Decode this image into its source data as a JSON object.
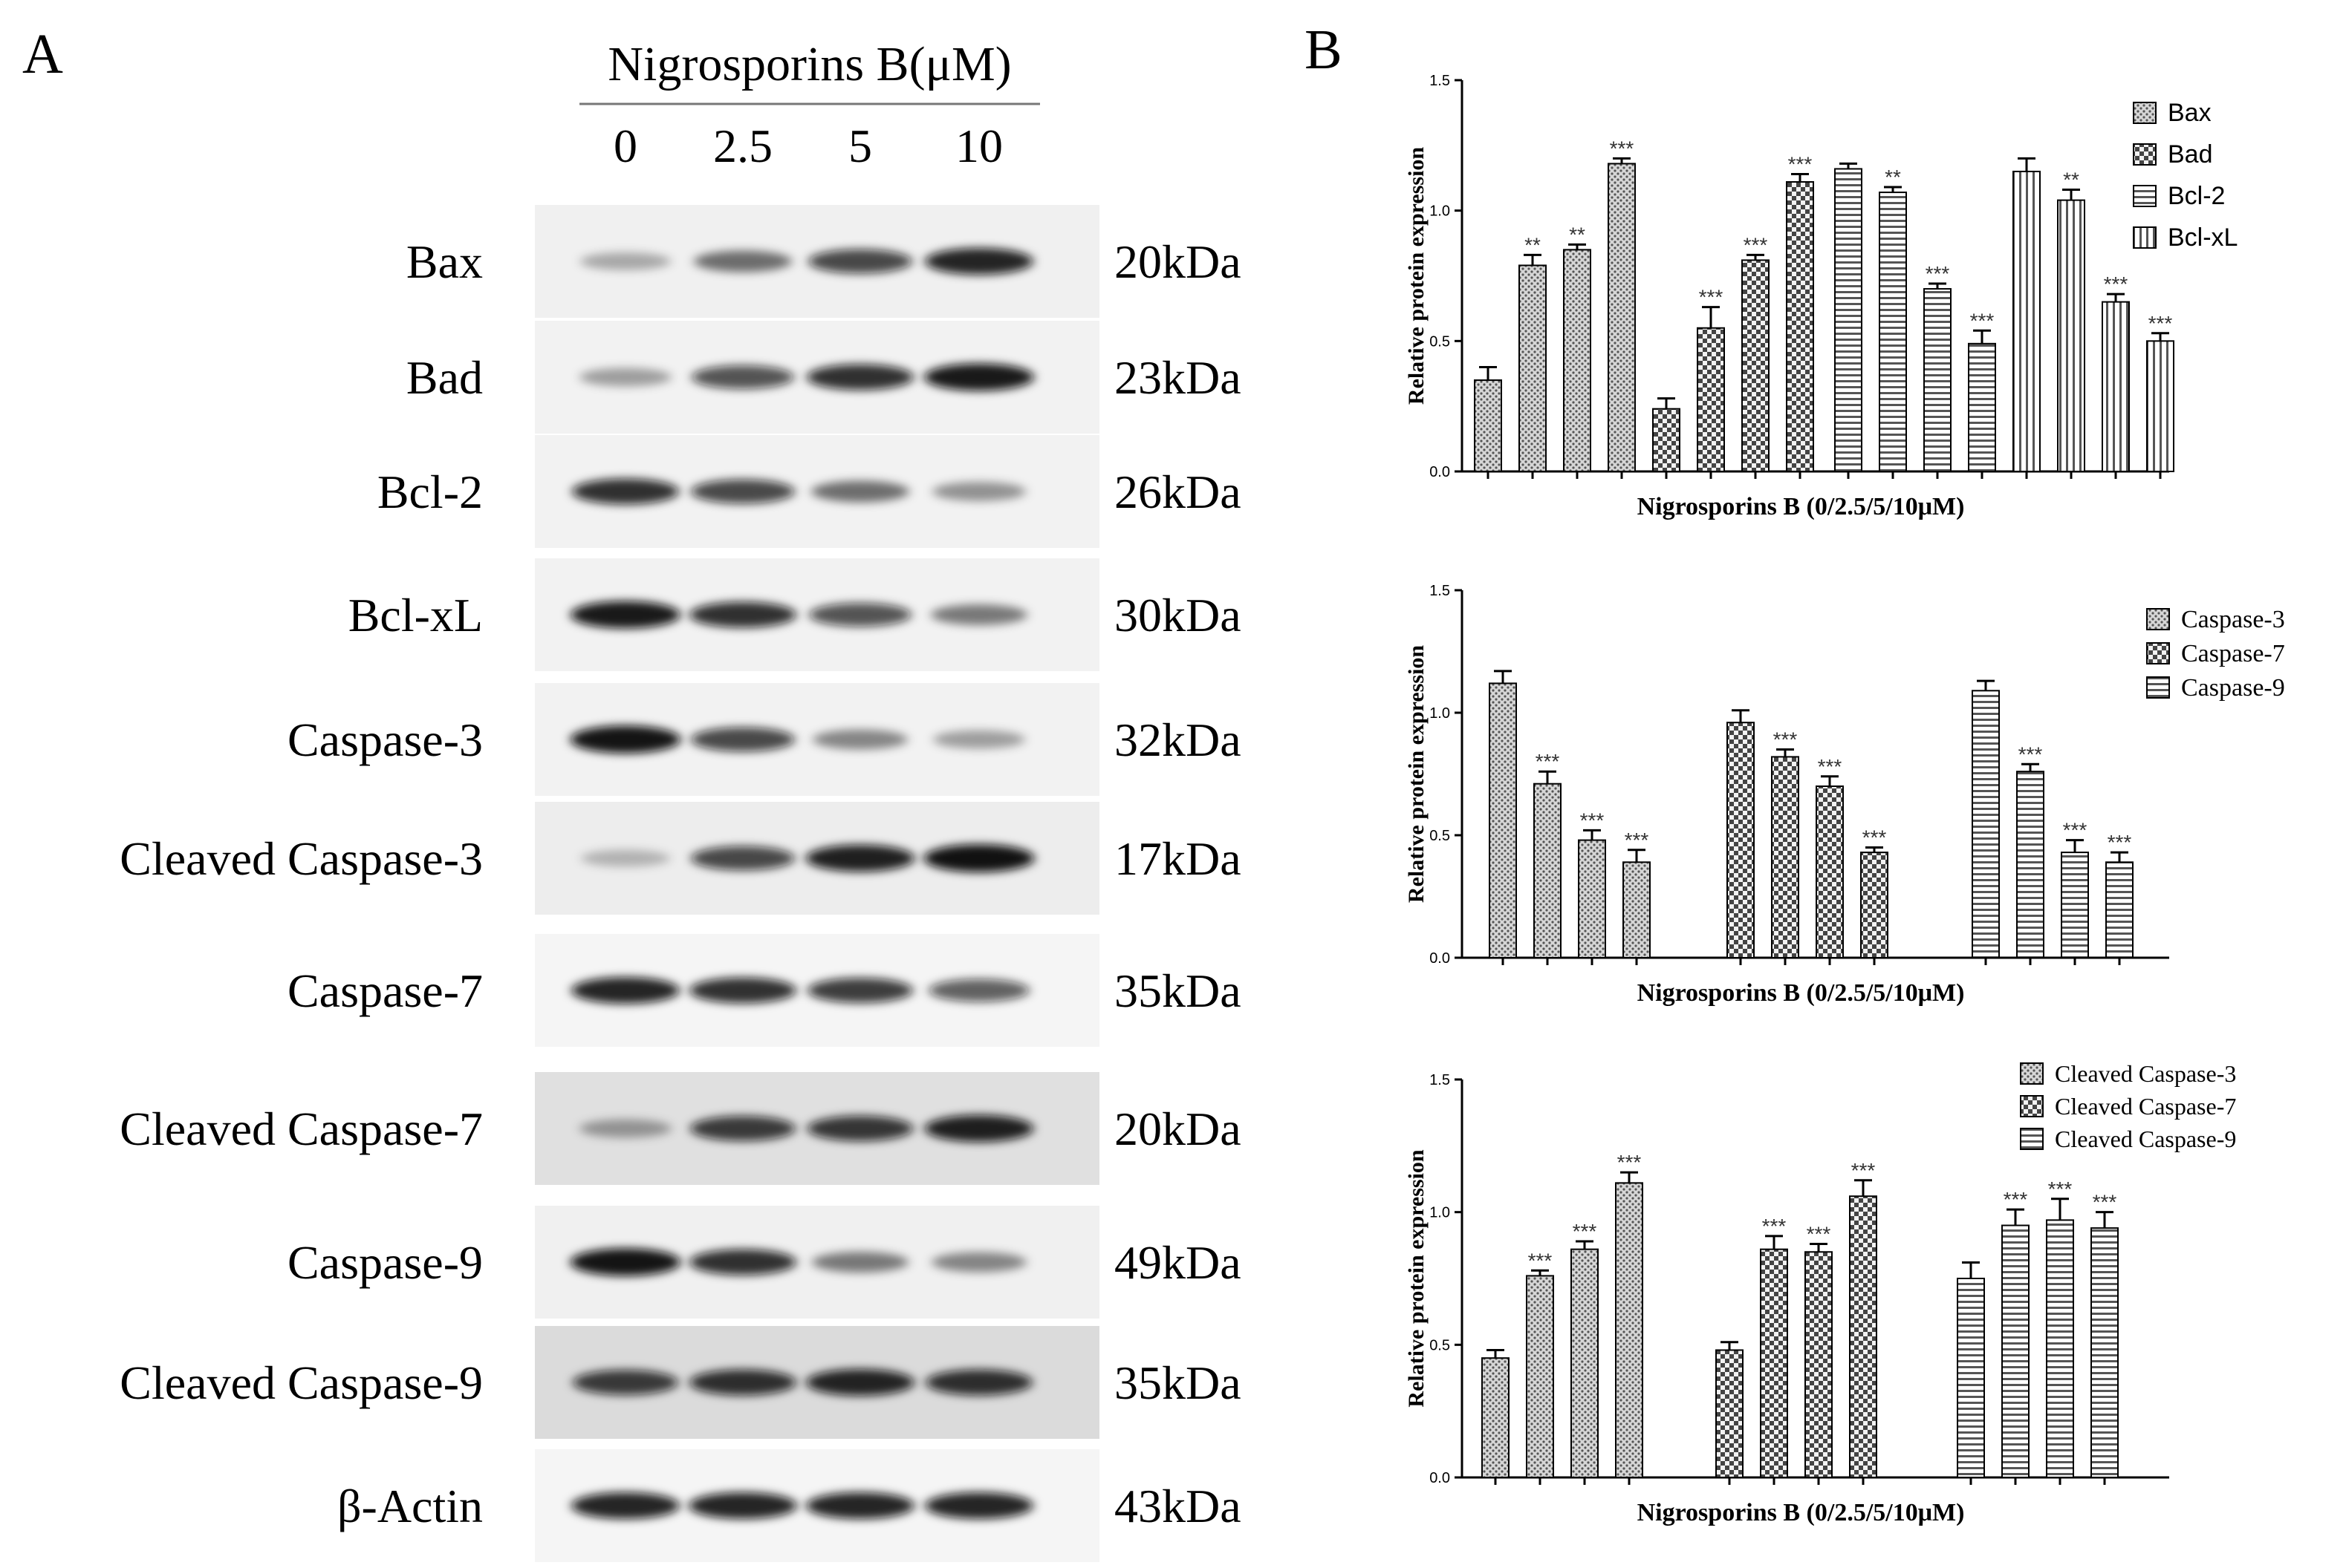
{
  "panel_a": {
    "letter": "A",
    "treatment_label": "Nigrosporins B(μM)",
    "doses": [
      "0",
      "2.5",
      "5",
      "10"
    ],
    "blots": [
      {
        "protein": "Bax",
        "size": "20kDa",
        "intensity": [
          0.3,
          0.55,
          0.75,
          0.9
        ],
        "bg": 0.06
      },
      {
        "protein": "Bad",
        "size": "23kDa",
        "intensity": [
          0.35,
          0.7,
          0.85,
          0.95
        ],
        "bg": 0.05
      },
      {
        "protein": "Bcl-2",
        "size": "26kDa",
        "intensity": [
          0.85,
          0.75,
          0.55,
          0.4
        ],
        "bg": 0.05
      },
      {
        "protein": "Bcl-xL",
        "size": "30kDa",
        "intensity": [
          0.95,
          0.85,
          0.7,
          0.5
        ],
        "bg": 0.05
      },
      {
        "protein": "Caspase-3",
        "size": "32kDa",
        "intensity": [
          0.97,
          0.75,
          0.45,
          0.35
        ],
        "bg": 0.05
      },
      {
        "protein": "Cleaved Caspase-3",
        "size": "17kDa",
        "intensity": [
          0.25,
          0.75,
          0.92,
          0.98
        ],
        "bg": 0.07
      },
      {
        "protein": "Caspase-7",
        "size": "35kDa",
        "intensity": [
          0.9,
          0.85,
          0.8,
          0.65
        ],
        "bg": 0.04
      },
      {
        "protein": "Cleaved Caspase-7",
        "size": "20kDa",
        "intensity": [
          0.35,
          0.8,
          0.82,
          0.92
        ],
        "bg": 0.12
      },
      {
        "protein": "Caspase-9",
        "size": "49kDa",
        "intensity": [
          0.97,
          0.85,
          0.5,
          0.45
        ],
        "bg": 0.06
      },
      {
        "protein": "Cleaved Caspase-9",
        "size": "35kDa",
        "intensity": [
          0.8,
          0.85,
          0.9,
          0.85
        ],
        "bg": 0.14
      },
      {
        "protein": "β-Actin",
        "size": "43kDa",
        "intensity": [
          0.9,
          0.9,
          0.9,
          0.9
        ],
        "bg": 0.04
      }
    ]
  },
  "panel_b": {
    "letter": "B"
  },
  "chart_data": [
    {
      "type": "bar",
      "title": "",
      "ylabel": "Relative protein expression",
      "xlabel": "Nigrosporins B (0/2.5/5/10μM)",
      "ylim": [
        0,
        1.5
      ],
      "yticks": [
        "0.0",
        "0.5",
        "1.0",
        "1.5"
      ],
      "legend_position": "top-right",
      "series": [
        {
          "name": "Bax",
          "pattern": "dots",
          "values": [
            0.35,
            0.79,
            0.85,
            1.18
          ],
          "errors": [
            0.05,
            0.04,
            0.02,
            0.02
          ],
          "significance": [
            "",
            "**",
            "**",
            "***"
          ]
        },
        {
          "name": "Bad",
          "pattern": "checker",
          "values": [
            0.24,
            0.55,
            0.81,
            1.11
          ],
          "errors": [
            0.04,
            0.08,
            0.02,
            0.03
          ],
          "significance": [
            "",
            "***",
            "***",
            "***"
          ]
        },
        {
          "name": "Bcl-2",
          "pattern": "hlines",
          "values": [
            1.16,
            1.07,
            0.7,
            0.49
          ],
          "errors": [
            0.02,
            0.02,
            0.02,
            0.05
          ],
          "significance": [
            "",
            "**",
            "***",
            "***"
          ]
        },
        {
          "name": "Bcl-xL",
          "pattern": "vlines",
          "values": [
            1.15,
            1.04,
            0.65,
            0.5
          ],
          "errors": [
            0.05,
            0.04,
            0.03,
            0.03
          ],
          "significance": [
            "",
            "**",
            "***",
            "***"
          ]
        }
      ]
    },
    {
      "type": "bar",
      "title": "",
      "ylabel": "Relative protein expression",
      "xlabel": "Nigrosporins B (0/2.5/5/10μM)",
      "ylim": [
        0,
        1.5
      ],
      "yticks": [
        "0.0",
        "0.5",
        "1.0",
        "1.5"
      ],
      "legend_position": "top-right",
      "series": [
        {
          "name": "Caspase-3",
          "pattern": "dots",
          "values": [
            1.12,
            0.71,
            0.48,
            0.39
          ],
          "errors": [
            0.05,
            0.05,
            0.04,
            0.05
          ],
          "significance": [
            "",
            "***",
            "***",
            "***"
          ]
        },
        {
          "name": "Caspase-7",
          "pattern": "checker",
          "values": [
            0.96,
            0.82,
            0.7,
            0.43
          ],
          "errors": [
            0.05,
            0.03,
            0.04,
            0.02
          ],
          "significance": [
            "",
            "***",
            "***",
            "***"
          ]
        },
        {
          "name": "Caspase-9",
          "pattern": "hlines",
          "values": [
            1.09,
            0.76,
            0.43,
            0.39
          ],
          "errors": [
            0.04,
            0.03,
            0.05,
            0.04
          ],
          "significance": [
            "",
            "***",
            "***",
            "***"
          ]
        }
      ]
    },
    {
      "type": "bar",
      "title": "",
      "ylabel": "Relative protein expression",
      "xlabel": "Nigrosporins B (0/2.5/5/10μM)",
      "ylim": [
        0,
        1.5
      ],
      "yticks": [
        "0.0",
        "0.5",
        "1.0",
        "1.5"
      ],
      "legend_position": "top-right",
      "series": [
        {
          "name": "Cleaved Caspase-3",
          "pattern": "dots",
          "values": [
            0.45,
            0.76,
            0.86,
            1.11
          ],
          "errors": [
            0.03,
            0.02,
            0.03,
            0.04
          ],
          "significance": [
            "",
            "***",
            "***",
            "***"
          ]
        },
        {
          "name": "Cleaved Caspase-7",
          "pattern": "checker",
          "values": [
            0.48,
            0.86,
            0.85,
            1.06
          ],
          "errors": [
            0.03,
            0.05,
            0.03,
            0.06
          ],
          "significance": [
            "",
            "***",
            "***",
            "***"
          ]
        },
        {
          "name": "Cleaved Caspase-9",
          "pattern": "hlines",
          "values": [
            0.75,
            0.95,
            0.97,
            0.94
          ],
          "errors": [
            0.06,
            0.06,
            0.08,
            0.06
          ],
          "significance": [
            "",
            "***",
            "***",
            "***"
          ]
        }
      ]
    }
  ]
}
